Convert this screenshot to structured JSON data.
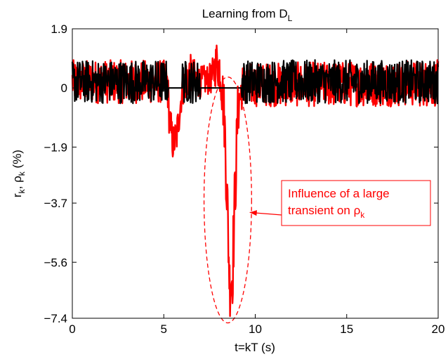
{
  "chart_data": {
    "type": "line",
    "title": {
      "main": "Learning from D",
      "sub": "L"
    },
    "xlabel": "t=kT (s)",
    "ylabel": {
      "r": "r",
      "r_sub": "k",
      "sep": ", ",
      "rho": "ρ",
      "rho_sub": "k",
      "unit": " (%)"
    },
    "xlim": [
      0,
      20
    ],
    "ylim": [
      -7.4,
      1.9
    ],
    "x_ticks": [
      0,
      5,
      10,
      15,
      20
    ],
    "x_tick_labels": [
      "0",
      "5",
      "10",
      "15",
      "20"
    ],
    "y_ticks": [
      1.9,
      0,
      -1.9,
      -3.7,
      -5.6,
      -7.4
    ],
    "y_tick_labels": [
      "1.9",
      "0",
      "−1.9",
      "−3.7",
      "−5.6",
      "−7.4"
    ],
    "grid": false,
    "legend": "none",
    "colors": {
      "rho": "#ff0000",
      "r": "#000000",
      "annotation": "#ff0000"
    },
    "series": [
      {
        "key": "rho",
        "style": "red noisy trace, drawn underneath",
        "envelope": [
          {
            "x": 0.0,
            "low": -0.5,
            "high": 0.9
          },
          {
            "x": 5.2,
            "low": -0.5,
            "high": 0.9
          },
          {
            "x": 5.3,
            "low": -1.6,
            "high": -0.3
          },
          {
            "x": 5.5,
            "low": -2.4,
            "high": -1.2
          },
          {
            "x": 5.7,
            "low": -2.2,
            "high": -0.9
          },
          {
            "x": 6.0,
            "low": -0.6,
            "high": 0.4
          },
          {
            "x": 6.3,
            "low": -0.4,
            "high": 1.2
          },
          {
            "x": 7.0,
            "low": -0.3,
            "high": 0.7
          },
          {
            "x": 7.6,
            "low": -0.2,
            "high": 0.8
          },
          {
            "x": 7.9,
            "low": 0.1,
            "high": 1.6
          },
          {
            "x": 8.1,
            "low": -0.3,
            "high": 1.4
          },
          {
            "x": 8.3,
            "low": -1.8,
            "high": 0.2
          },
          {
            "x": 8.45,
            "low": -4.5,
            "high": -2.0
          },
          {
            "x": 8.6,
            "low": -7.4,
            "high": -5.2
          },
          {
            "x": 8.75,
            "low": -7.2,
            "high": -4.8
          },
          {
            "x": 8.9,
            "low": -4.6,
            "high": -2.0
          },
          {
            "x": 9.05,
            "low": -1.6,
            "high": 0.2
          },
          {
            "x": 9.3,
            "low": -0.6,
            "high": 0.8
          },
          {
            "x": 20.0,
            "low": -0.6,
            "high": 0.9
          }
        ]
      },
      {
        "key": "r",
        "style": "black noisy trace, drawn on top",
        "envelope": [
          {
            "x": 0.0,
            "low": -0.5,
            "high": 0.9
          },
          {
            "x": 5.25,
            "low": -0.5,
            "high": 0.9
          },
          {
            "x": 9.25,
            "low": -0.5,
            "high": 0.9
          },
          {
            "x": 20.0,
            "low": -0.5,
            "high": 0.9
          }
        ],
        "flat_segments": [
          {
            "x_start": 5.25,
            "x_end": 6.0,
            "y": 0.0
          },
          {
            "x_start": 7.0,
            "x_end": 9.25,
            "y": 0.0
          }
        ]
      }
    ],
    "annotation": {
      "text_line1": "Influence of a large",
      "text_line2": "transient on ",
      "symbol": "ρ",
      "symbol_sub": "k",
      "ellipse_center": {
        "x": 8.5,
        "y": -3.6
      },
      "ellipse_radii": {
        "x": 1.3,
        "y": 3.95
      },
      "arrow_points_to": {
        "x": 9.7,
        "y": -4.0
      }
    }
  }
}
